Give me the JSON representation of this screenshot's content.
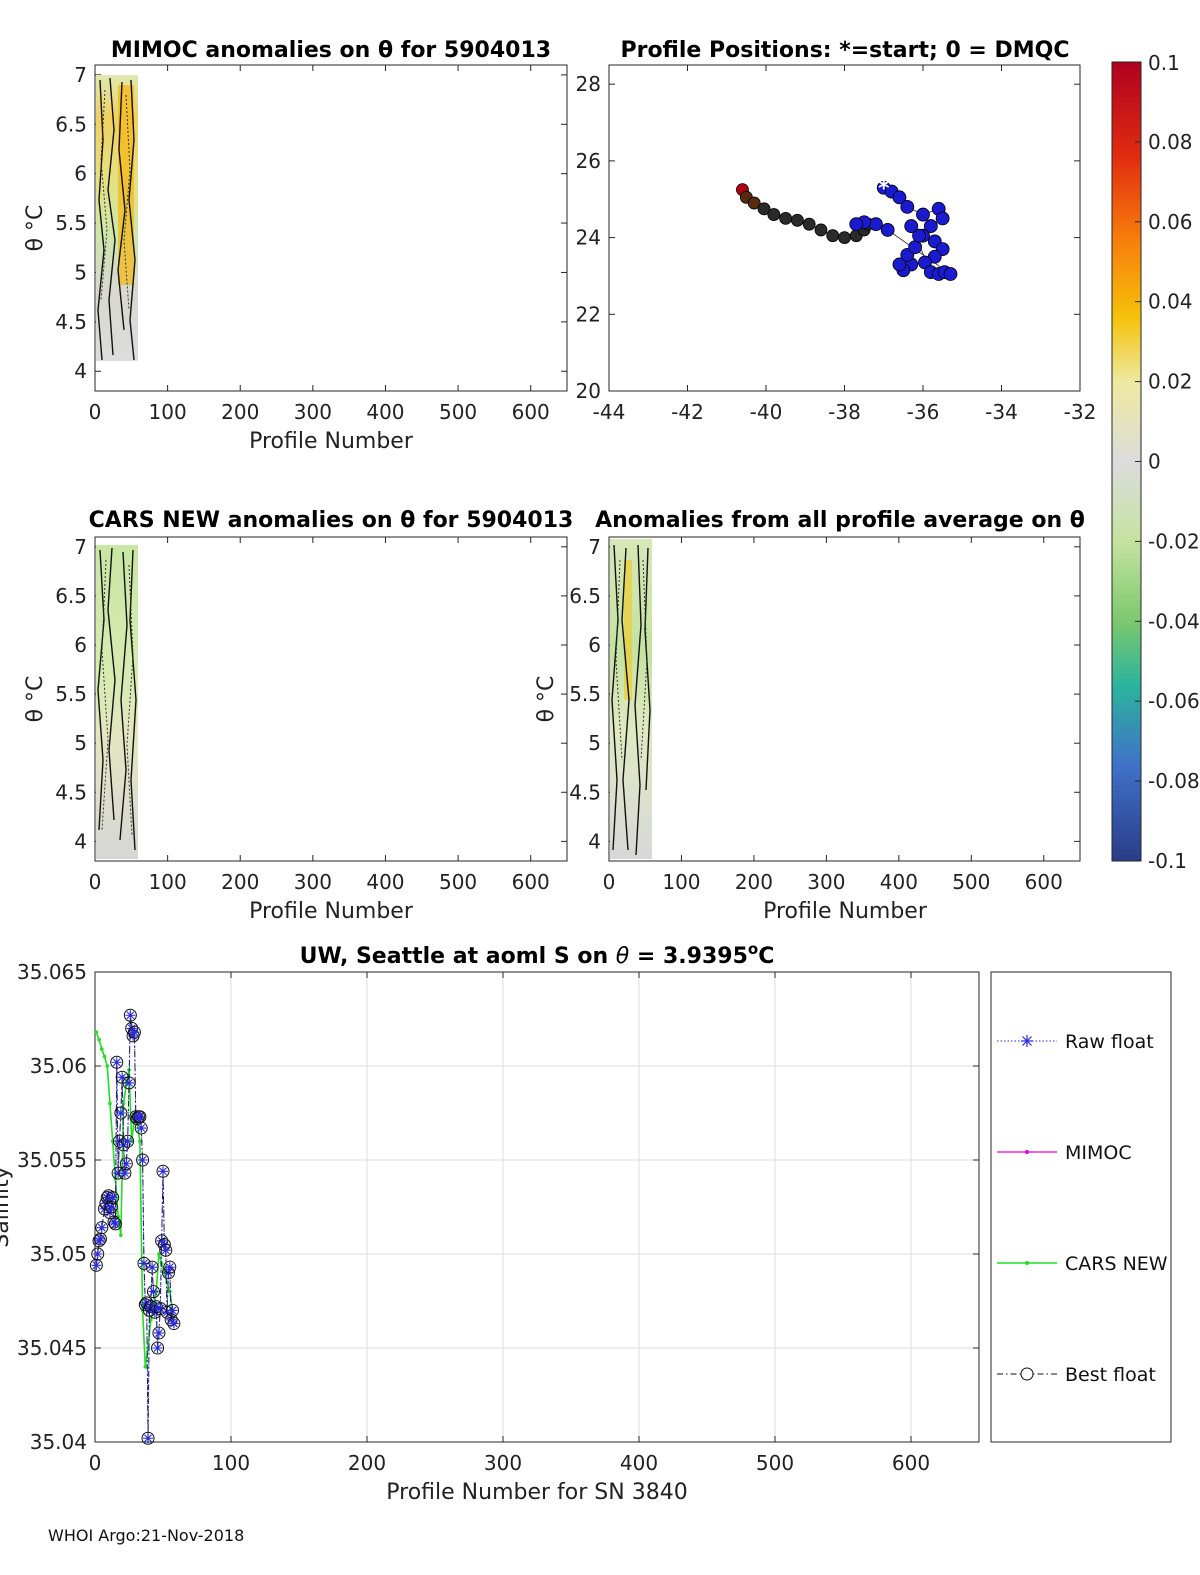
{
  "footer": "WHOI Argo:21-Nov-2018",
  "colors": {
    "raw": "#2a2ad8",
    "mimoc": "#e000e0",
    "cars": "#22dd22",
    "best": "#111111",
    "grid": "#dddddd"
  },
  "chart_data": [
    {
      "id": "mimoc",
      "type": "heatmap",
      "title": "MIMOC anomalies on θ  for 5904013",
      "xlabel": "Profile Number",
      "ylabel": "θ °C",
      "xlim": [
        0,
        650
      ],
      "ylim": [
        3.8,
        7.1
      ],
      "xticks": [
        0,
        100,
        200,
        300,
        400,
        500,
        600
      ],
      "yticks": [
        4,
        4.5,
        5,
        5.5,
        6,
        6.5,
        7
      ],
      "profiles_range": [
        1,
        58
      ]
    },
    {
      "id": "positions",
      "type": "scatter",
      "title": "Profile Positions: *=start; 0 = DMQC",
      "xlim": [
        -44,
        -32
      ],
      "ylim": [
        20,
        28.5
      ],
      "xticks": [
        -44,
        -42,
        -40,
        -38,
        -36,
        -34,
        -32
      ],
      "yticks": [
        20,
        22,
        24,
        26,
        28
      ],
      "start": {
        "lon": -37.0,
        "lat": 25.3
      },
      "track_dmqc": [
        [
          -37.0,
          25.3
        ],
        [
          -36.8,
          25.2
        ],
        [
          -36.6,
          25.05
        ],
        [
          -36.4,
          24.8
        ],
        [
          -36.0,
          24.6
        ],
        [
          -35.6,
          24.75
        ],
        [
          -35.5,
          24.5
        ],
        [
          -35.8,
          24.3
        ],
        [
          -36.0,
          24.05
        ],
        [
          -35.7,
          23.9
        ],
        [
          -35.5,
          23.7
        ],
        [
          -35.7,
          23.5
        ],
        [
          -35.95,
          23.35
        ],
        [
          -36.3,
          23.3
        ],
        [
          -36.5,
          23.15
        ],
        [
          -36.6,
          23.3
        ],
        [
          -36.4,
          23.55
        ],
        [
          -36.2,
          23.75
        ],
        [
          -36.1,
          24.05
        ],
        [
          -36.3,
          24.3
        ],
        [
          -35.8,
          23.1
        ],
        [
          -35.6,
          23.05
        ],
        [
          -35.45,
          23.1
        ],
        [
          -35.3,
          23.05
        ],
        [
          -36.9,
          24.2
        ],
        [
          -37.2,
          24.35
        ],
        [
          -37.5,
          24.4
        ],
        [
          -37.7,
          24.35
        ]
      ],
      "track_rt": [
        [
          -40.6,
          25.25
        ],
        [
          -40.5,
          25.05
        ],
        [
          -40.3,
          24.9
        ],
        [
          -40.05,
          24.75
        ],
        [
          -39.8,
          24.6
        ],
        [
          -39.5,
          24.5
        ],
        [
          -39.2,
          24.45
        ],
        [
          -38.9,
          24.35
        ],
        [
          -38.6,
          24.2
        ],
        [
          -38.3,
          24.05
        ],
        [
          -38.0,
          24.0
        ],
        [
          -37.7,
          24.05
        ],
        [
          -37.5,
          24.2
        ],
        [
          -37.4,
          24.35
        ]
      ],
      "colorbar": {
        "min": -0.1,
        "max": 0.1,
        "ticks": [
          "0.1",
          "0.08",
          "0.06",
          "0.04",
          "0.02",
          "0",
          "-0.02",
          "-0.04",
          "-0.06",
          "-0.08",
          "-0.1"
        ]
      }
    },
    {
      "id": "cars",
      "type": "heatmap",
      "title": "CARS NEW anomalies on θ for 5904013",
      "xlabel": "Profile Number",
      "ylabel": "θ °C",
      "xlim": [
        0,
        650
      ],
      "ylim": [
        3.8,
        7.1
      ],
      "xticks": [
        0,
        100,
        200,
        300,
        400,
        500,
        600
      ],
      "yticks": [
        4,
        4.5,
        5,
        5.5,
        6,
        6.5,
        7
      ],
      "profiles_range": [
        1,
        58
      ]
    },
    {
      "id": "allavg",
      "type": "heatmap",
      "title": "Anomalies from all profile average on θ",
      "xlabel": "Profile Number",
      "ylabel": "θ °C",
      "xlim": [
        0,
        650
      ],
      "ylim": [
        3.8,
        7.1
      ],
      "xticks": [
        0,
        100,
        200,
        300,
        400,
        500,
        600
      ],
      "yticks": [
        4,
        4.5,
        5,
        5.5,
        6,
        6.5,
        7
      ],
      "profiles_range": [
        1,
        58
      ]
    },
    {
      "id": "salinity",
      "type": "line",
      "title": "UW, Seattle at aoml S on θ = 3.9395°C",
      "title_parts": [
        "UW, Seattle at aoml S on ",
        "θ",
        " = 3.9395",
        "o",
        "C"
      ],
      "xlabel": "Profile Number for SN 3840",
      "ylabel": "Salinity",
      "xlim": [
        0,
        650
      ],
      "ylim": [
        35.04,
        35.065
      ],
      "xticks": [
        0,
        100,
        200,
        300,
        400,
        500,
        600
      ],
      "yticks": [
        35.04,
        35.045,
        35.05,
        35.055,
        35.06,
        35.065
      ],
      "ytick_labels": [
        "35.04",
        "35.045",
        "35.05",
        "35.055",
        "35.06",
        "35.065"
      ],
      "legend": [
        "Raw float",
        "MIMOC",
        "CARS NEW",
        "Best float"
      ],
      "series": [
        {
          "name": "Raw float",
          "x": [
            1,
            2,
            3,
            4,
            5,
            7,
            8,
            9,
            10,
            11,
            12,
            13,
            14,
            15,
            16,
            17,
            18,
            19,
            20,
            21,
            22,
            23,
            24,
            25,
            26,
            27,
            28,
            29,
            30,
            31,
            32,
            33,
            34,
            35,
            36,
            37,
            38,
            39,
            40,
            41,
            42,
            43,
            44,
            45,
            46,
            47,
            48,
            49,
            50,
            51,
            52,
            53,
            54,
            55,
            56,
            57,
            58
          ],
          "y": [
            35.0494,
            35.05,
            35.0507,
            35.0508,
            35.0514,
            35.0524,
            35.0527,
            35.053,
            35.0531,
            35.0522,
            35.0525,
            35.053,
            35.0517,
            35.0516,
            35.0602,
            35.0543,
            35.056,
            35.0575,
            35.0594,
            35.0558,
            35.0543,
            35.0548,
            35.056,
            35.0591,
            35.0627,
            35.062,
            35.0616,
            35.0618,
            35.0573,
            35.0572,
            35.0573,
            35.0573,
            35.0567,
            35.055,
            35.0495,
            35.0473,
            35.0474,
            35.0402,
            35.047,
            35.0472,
            35.0493,
            35.048,
            35.0469,
            35.0472,
            35.045,
            35.0458,
            35.0471,
            35.0507,
            35.0544,
            35.0505,
            35.0502,
            35.0469,
            35.049,
            35.0493,
            35.0465,
            35.047,
            35.0463
          ]
        },
        {
          "name": "CARS NEW",
          "x": [
            1,
            3,
            5,
            7,
            9,
            11,
            13,
            15,
            17,
            19,
            21,
            23,
            25,
            27,
            29,
            31,
            33,
            35,
            37,
            39,
            41,
            43,
            45,
            47,
            49,
            51,
            53,
            55,
            57
          ],
          "y": [
            35.0618,
            35.0614,
            35.0609,
            35.0605,
            35.06,
            35.058,
            35.056,
            35.054,
            35.052,
            35.051,
            35.058,
            35.059,
            35.0598,
            35.056,
            35.0572,
            35.057,
            35.056,
            35.047,
            35.044,
            35.045,
            35.0465,
            35.047,
            35.048,
            35.05,
            35.0495,
            35.049,
            35.0485,
            35.048,
            35.047
          ]
        }
      ]
    }
  ]
}
